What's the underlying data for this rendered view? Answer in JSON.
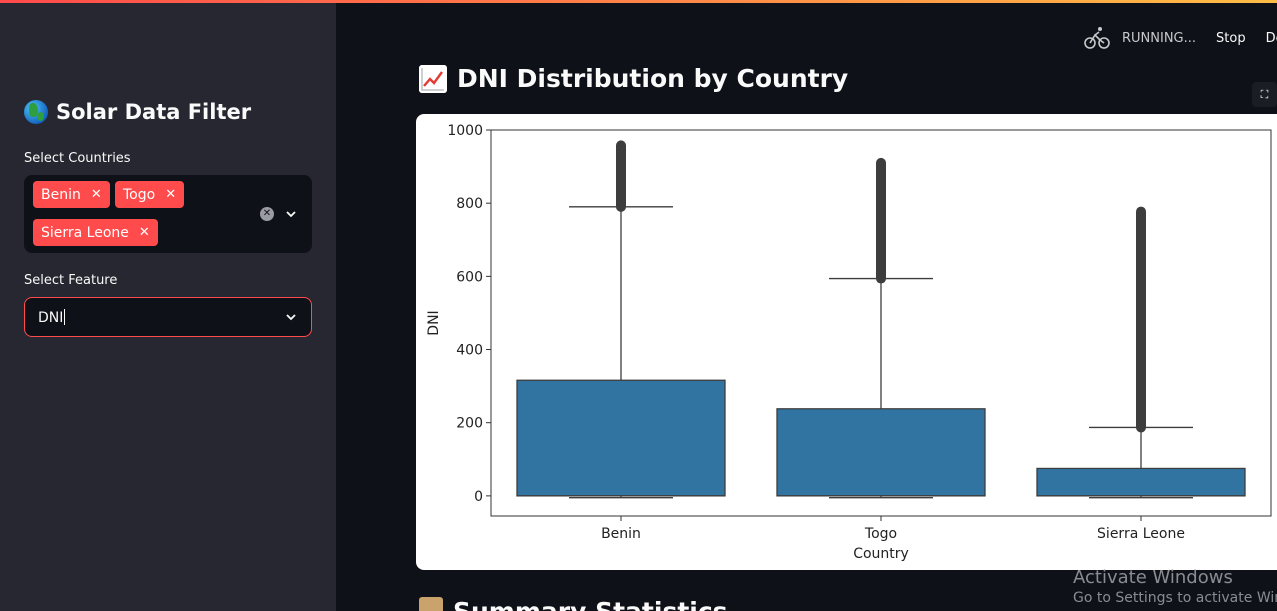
{
  "sidebar": {
    "title": "Solar Data Filter",
    "countries_label": "Select Countries",
    "selected_countries": [
      "Benin",
      "Togo",
      "Sierra Leone"
    ],
    "feature_label": "Select Feature",
    "feature_value": "DNI"
  },
  "header": {
    "status": "RUNNING...",
    "stop": "Stop",
    "deploy": "Dep"
  },
  "main": {
    "title": "DNI Distribution by Country",
    "next_section_title": "Summary Statistics"
  },
  "chart_data": {
    "type": "box",
    "categories": [
      "Benin",
      "Togo",
      "Sierra Leone"
    ],
    "xlabel": "Country",
    "ylabel": "DNI",
    "ylim": [
      -55,
      1000
    ],
    "yticks": [
      0,
      200,
      400,
      600,
      800,
      1000
    ],
    "color": "#3274a1",
    "boxes": [
      {
        "name": "Benin",
        "whisker_low": -5,
        "q1": 0,
        "median": 0,
        "q3": 316,
        "whisker_high": 790,
        "outlier_min": 790,
        "outlier_max": 958
      },
      {
        "name": "Togo",
        "whisker_low": -5,
        "q1": 0,
        "median": 0,
        "q3": 238,
        "whisker_high": 594,
        "outlier_min": 594,
        "outlier_max": 910
      },
      {
        "name": "Sierra Leone",
        "whisker_low": -5,
        "q1": 0,
        "median": 0,
        "q3": 75,
        "whisker_high": 187,
        "outlier_min": 187,
        "outlier_max": 777
      }
    ]
  },
  "watermark": {
    "line1": "Activate Windows",
    "line2": "Go to Settings to activate Windows."
  }
}
